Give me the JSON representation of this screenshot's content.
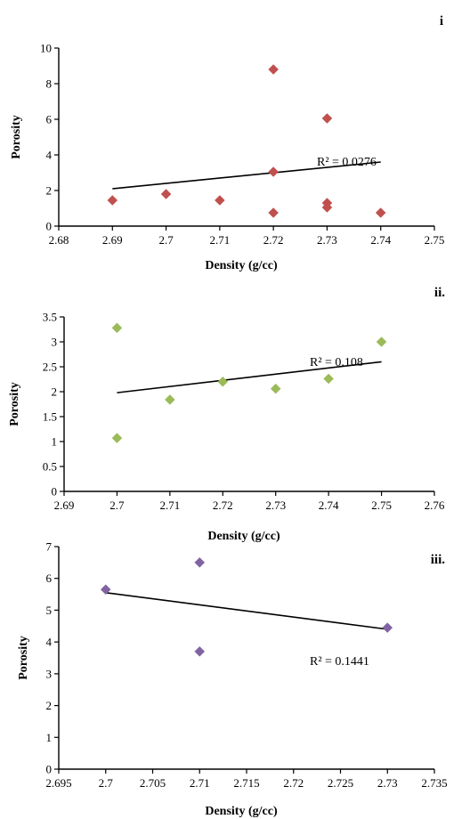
{
  "chart_data": [
    {
      "type": "scatter",
      "panel_label": "i",
      "xlabel": "Density (g/cc)",
      "ylabel": "Porosity",
      "xlim": [
        2.68,
        2.75
      ],
      "ylim": [
        0,
        10
      ],
      "xticks": [
        "2.68",
        "2.69",
        "2.7",
        "2.71",
        "2.72",
        "2.73",
        "2.74",
        "2.75"
      ],
      "yticks": [
        "0",
        "2",
        "4",
        "6",
        "8",
        "10"
      ],
      "r2_label": "R² = 0.0276",
      "marker_color": "#c0504d",
      "points": [
        {
          "x": 2.69,
          "y": 1.45
        },
        {
          "x": 2.7,
          "y": 1.8
        },
        {
          "x": 2.71,
          "y": 1.45
        },
        {
          "x": 2.72,
          "y": 8.8
        },
        {
          "x": 2.72,
          "y": 3.05
        },
        {
          "x": 2.72,
          "y": 0.75
        },
        {
          "x": 2.73,
          "y": 6.05
        },
        {
          "x": 2.73,
          "y": 1.3
        },
        {
          "x": 2.73,
          "y": 1.05
        },
        {
          "x": 2.74,
          "y": 0.75
        }
      ],
      "trendline": {
        "x": [
          2.69,
          2.74
        ],
        "y": [
          2.1,
          3.6
        ]
      }
    },
    {
      "type": "scatter",
      "panel_label": "ii.",
      "xlabel": "Density (g/cc)",
      "ylabel": "Porosity",
      "xlim": [
        2.69,
        2.76
      ],
      "ylim": [
        0,
        3.5
      ],
      "xticks": [
        "2.69",
        "2.7",
        "2.71",
        "2.72",
        "2.73",
        "2.74",
        "2.75",
        "2.76"
      ],
      "yticks": [
        "0",
        "0.5",
        "1",
        "1.5",
        "2",
        "2.5",
        "3",
        "3.5"
      ],
      "r2_label": "R² = 0.108",
      "marker_color": "#9bbb59",
      "points": [
        {
          "x": 2.7,
          "y": 3.28
        },
        {
          "x": 2.7,
          "y": 1.07
        },
        {
          "x": 2.71,
          "y": 1.84
        },
        {
          "x": 2.72,
          "y": 2.2
        },
        {
          "x": 2.73,
          "y": 2.06
        },
        {
          "x": 2.74,
          "y": 2.26
        },
        {
          "x": 2.75,
          "y": 3.0
        }
      ],
      "trendline": {
        "x": [
          2.7,
          2.75
        ],
        "y": [
          1.98,
          2.6
        ]
      }
    },
    {
      "type": "scatter",
      "panel_label": "iii.",
      "xlabel": "Density (g/cc)",
      "ylabel": "Porosity",
      "xlim": [
        2.695,
        2.735
      ],
      "ylim": [
        0,
        7
      ],
      "xticks": [
        "2.695",
        "2.7",
        "2.705",
        "2.71",
        "2.715",
        "2.72",
        "2.725",
        "2.73",
        "2.735"
      ],
      "yticks": [
        "0",
        "1",
        "2",
        "3",
        "4",
        "5",
        "6",
        "7"
      ],
      "r2_label": "R² = 0.1441",
      "marker_color": "#8064a2",
      "points": [
        {
          "x": 2.7,
          "y": 5.65
        },
        {
          "x": 2.71,
          "y": 6.5
        },
        {
          "x": 2.71,
          "y": 3.7
        },
        {
          "x": 2.73,
          "y": 4.45
        }
      ],
      "trendline": {
        "x": [
          2.7,
          2.73
        ],
        "y": [
          5.55,
          4.4
        ]
      }
    }
  ]
}
